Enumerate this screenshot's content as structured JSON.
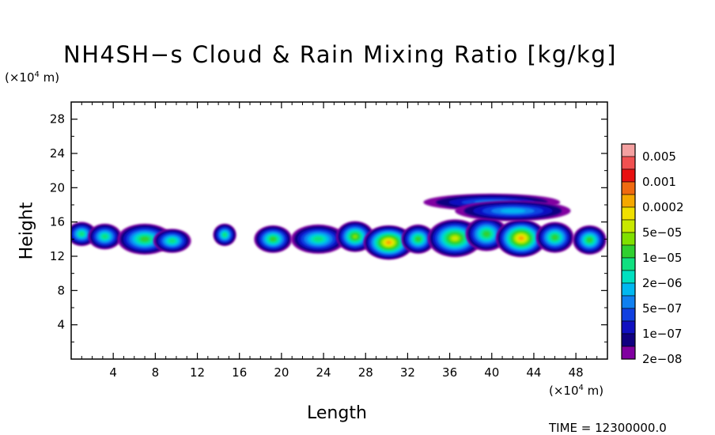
{
  "chart_data": {
    "type": "heatmap",
    "title": "NH4SH−s Cloud & Rain Mixing Ratio [kg/kg]",
    "xlabel": "Length",
    "ylabel": "Height",
    "x_unit_prefix": "(×10",
    "x_unit_exp": "4",
    "x_unit_suffix": " m)",
    "y_unit_prefix": "(×10",
    "y_unit_exp": "4",
    "y_unit_suffix": " m)",
    "xlim": [
      0,
      51
    ],
    "ylim": [
      0,
      30
    ],
    "x_ticks": [
      "4",
      "8",
      "12",
      "16",
      "20",
      "24",
      "28",
      "32",
      "36",
      "40",
      "44",
      "48"
    ],
    "y_ticks": [
      "4",
      "8",
      "12",
      "16",
      "20",
      "24",
      "28"
    ],
    "colorbar_labels": [
      "0.005",
      "0.001",
      "0.0002",
      "5e−05",
      "1e−05",
      "2e−06",
      "5e−07",
      "1e−07",
      "2e−08"
    ],
    "colorbar_colors": [
      "#f4a0a0",
      "#f05050",
      "#e81010",
      "#f06a10",
      "#f5a800",
      "#f0e000",
      "#c8e800",
      "#80e000",
      "#30d030",
      "#10e080",
      "#00e0c0",
      "#00b8f0",
      "#1080f0",
      "#1040e0",
      "#1010c0",
      "#100080",
      "#8000a0"
    ],
    "cloud_blobs": [
      {
        "x": 1.0,
        "y": 14.6,
        "rx": 1.4,
        "ry": 1.4,
        "level": 9
      },
      {
        "x": 3.2,
        "y": 14.3,
        "rx": 1.6,
        "ry": 1.5,
        "level": 9
      },
      {
        "x": 7.0,
        "y": 14.0,
        "rx": 2.6,
        "ry": 1.8,
        "level": 8
      },
      {
        "x": 9.6,
        "y": 13.8,
        "rx": 1.8,
        "ry": 1.4,
        "level": 9
      },
      {
        "x": 14.6,
        "y": 14.5,
        "rx": 1.1,
        "ry": 1.3,
        "level": 9
      },
      {
        "x": 19.2,
        "y": 14.0,
        "rx": 1.8,
        "ry": 1.6,
        "level": 8
      },
      {
        "x": 23.5,
        "y": 14.0,
        "rx": 2.6,
        "ry": 1.7,
        "level": 9
      },
      {
        "x": 27.0,
        "y": 14.3,
        "rx": 1.8,
        "ry": 1.8,
        "level": 7
      },
      {
        "x": 30.2,
        "y": 13.6,
        "rx": 2.4,
        "ry": 2.0,
        "level": 4
      },
      {
        "x": 33.0,
        "y": 14.0,
        "rx": 1.6,
        "ry": 1.7,
        "level": 8
      },
      {
        "x": 36.5,
        "y": 14.1,
        "rx": 2.6,
        "ry": 2.2,
        "level": 6
      },
      {
        "x": 39.5,
        "y": 14.6,
        "rx": 2.0,
        "ry": 2.0,
        "level": 8
      },
      {
        "x": 42.8,
        "y": 14.1,
        "rx": 2.4,
        "ry": 2.2,
        "level": 4
      },
      {
        "x": 46.0,
        "y": 14.2,
        "rx": 1.8,
        "ry": 1.8,
        "level": 8
      },
      {
        "x": 49.3,
        "y": 13.9,
        "rx": 1.6,
        "ry": 1.7,
        "level": 8
      },
      {
        "x": 40.0,
        "y": 18.3,
        "rx": 6.5,
        "ry": 1.0,
        "level": 12
      },
      {
        "x": 42.0,
        "y": 17.3,
        "rx": 5.5,
        "ry": 1.2,
        "level": 11
      }
    ]
  },
  "time_label": "TIME = 12300000.0"
}
